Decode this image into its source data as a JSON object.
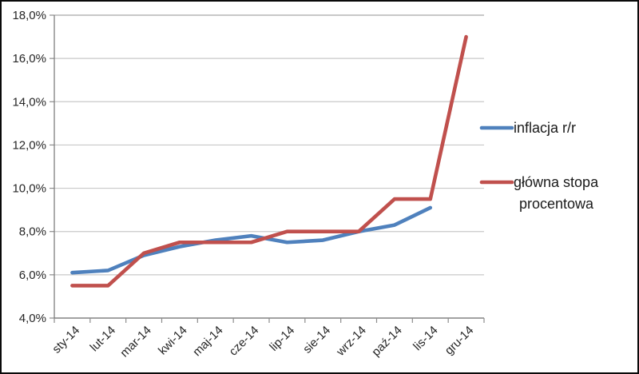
{
  "chart_data": {
    "type": "line",
    "title": "",
    "categories": [
      "sty-14",
      "lut-14",
      "mar-14",
      "kwi-14",
      "maj-14",
      "cze-14",
      "lip-14",
      "sie-14",
      "wrz-14",
      "paź-14",
      "lis-14",
      "gru-14"
    ],
    "series": [
      {
        "name": "inflacja r/r",
        "color": "#4F81BD",
        "values": [
          6.1,
          6.2,
          6.9,
          7.3,
          7.6,
          7.8,
          7.5,
          7.6,
          8.0,
          8.3,
          9.1,
          null
        ],
        "legend_lines": [
          "inflacja r/r"
        ]
      },
      {
        "name": "główna stopa procentowa",
        "color": "#C0504D",
        "values": [
          5.5,
          5.5,
          7.0,
          7.5,
          7.5,
          7.5,
          8.0,
          8.0,
          8.0,
          9.5,
          9.5,
          17.0
        ],
        "legend_lines": [
          "główna stopa",
          "procentowa"
        ]
      }
    ],
    "y_axis": {
      "min": 4,
      "max": 18,
      "step": 2,
      "tick_labels": [
        "4,0%",
        "6,0%",
        "8,0%",
        "10,0%",
        "12,0%",
        "14,0%",
        "16,0%",
        "18,0%"
      ]
    },
    "x_axis": {
      "label_rotation_deg": -45
    },
    "ylim": [
      4,
      18
    ],
    "grid": true,
    "legend_position": "right"
  },
  "colors": {
    "background": "#FFFFFF",
    "frame_border": "#0A0A0A",
    "gridline": "#C9C9C9",
    "top_gridline": "#A6A6A6",
    "axis": "#7F7F7F",
    "tick": "#8C8C8C",
    "label_text": "#262626"
  }
}
